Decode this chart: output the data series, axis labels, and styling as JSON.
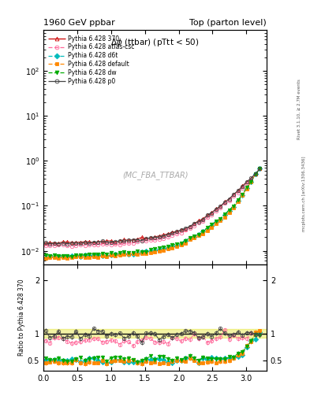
{
  "title_left": "1960 GeV ppbar",
  "title_right": "Top (parton level)",
  "plot_label": "Δφ (ttbar) (pTtt < 50)",
  "watermark": "(MC_FBA_TTBAR)",
  "right_label_top": "Rivet 3.1.10, ≥ 2.7M events",
  "right_label_bottom": "mcplots.cern.ch [arXiv:1306.3436]",
  "ylabel_ratio": "Ratio to Pythia 6.428 370",
  "ylim_main_log": [
    0.005,
    800
  ],
  "ylim_ratio": [
    0.3,
    2.3
  ],
  "xmin": 0.0,
  "xmax": 3.3,
  "yticks_ratio": [
    0.5,
    1.0,
    2.0
  ],
  "ytick_labels_ratio": [
    "0.5",
    "1",
    "2"
  ],
  "series": [
    {
      "label": "Pythia 6.428 370",
      "color": "#cc0000",
      "dashed": false,
      "marker": "^",
      "filled": false,
      "is_ref": true,
      "scale": 1.0,
      "ratio_level": 1.0
    },
    {
      "label": "Pythia 6.428 atlas-csc",
      "color": "#ff6699",
      "dashed": true,
      "marker": "o",
      "filled": false,
      "is_ref": false,
      "scale": 0.87,
      "ratio_level": 0.87
    },
    {
      "label": "Pythia 6.428 d6t",
      "color": "#00bbbb",
      "dashed": true,
      "marker": "D",
      "filled": true,
      "is_ref": false,
      "scale": 0.5,
      "ratio_level": 0.5
    },
    {
      "label": "Pythia 6.428 default",
      "color": "#ff8800",
      "dashed": true,
      "marker": "s",
      "filled": true,
      "is_ref": false,
      "scale": 0.47,
      "ratio_level": 0.47
    },
    {
      "label": "Pythia 6.428 dw",
      "color": "#00aa00",
      "dashed": true,
      "marker": "v",
      "filled": true,
      "is_ref": false,
      "scale": 0.53,
      "ratio_level": 0.53
    },
    {
      "label": "Pythia 6.428 p0",
      "color": "#444444",
      "dashed": false,
      "marker": "o",
      "filled": false,
      "is_ref": false,
      "scale": 0.98,
      "ratio_level": 0.98
    }
  ],
  "ref_band_color": "#dddd00",
  "ref_band_alpha": 0.35,
  "ref_band_lo": 0.92,
  "ref_band_hi": 1.08
}
